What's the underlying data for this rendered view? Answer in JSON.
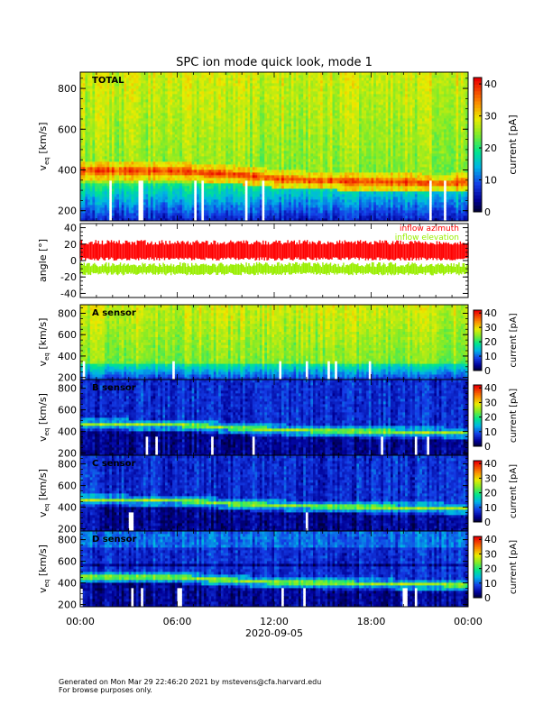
{
  "title": "SPC ion mode quick look, mode 1",
  "xaxis": {
    "label": "2020-09-05",
    "ticks": [
      "00:00",
      "06:00",
      "12:00",
      "18:00",
      "00:00"
    ],
    "range_hours": [
      0,
      24
    ]
  },
  "colorbar_label": "current [pA]",
  "footer": {
    "line1": "Generated on Mon Mar 29 22:46:20 2021 by mstevens@cfa.harvard.edu",
    "line2": "For browse purposes only."
  },
  "colors": {
    "inflow_azimuth": "#ff0000",
    "inflow_elevation": "#99ee00"
  },
  "chart_data": [
    {
      "type": "heatmap",
      "panel": "TOTAL",
      "ylabel": "v_eq [km/s]",
      "ylim": [
        150,
        880
      ],
      "yticks": [
        200,
        400,
        600,
        800
      ],
      "zlim": [
        0,
        42
      ],
      "zticks": [
        0,
        10,
        20,
        30,
        40
      ],
      "background": "green-yellow",
      "beam_core_velocity_kms": [
        [
          0,
          400
        ],
        [
          6,
          395
        ],
        [
          10,
          375
        ],
        [
          12,
          360
        ],
        [
          14,
          350
        ],
        [
          18,
          345
        ],
        [
          22,
          335
        ],
        [
          24,
          340
        ]
      ]
    },
    {
      "type": "line",
      "panel": "angle",
      "ylabel": "angle [°]",
      "ylim": [
        -45,
        45
      ],
      "yticks": [
        -40,
        -20,
        0,
        20,
        40
      ],
      "series": [
        {
          "name": "inflow azimuth",
          "color": "#ff0000",
          "range_deg": [
            0,
            25
          ]
        },
        {
          "name": "inflow elevation",
          "color": "#99ee00",
          "range_deg": [
            -18,
            -2
          ]
        }
      ]
    },
    {
      "type": "heatmap",
      "panel": "A sensor",
      "ylabel": "v_eq [km/s]",
      "ylim": [
        180,
        880
      ],
      "yticks": [
        200,
        400,
        600,
        800
      ],
      "zlim": [
        0,
        42
      ],
      "zticks": [
        0,
        10,
        20,
        30,
        40
      ],
      "background": "green"
    },
    {
      "type": "heatmap",
      "panel": "B sensor",
      "ylabel": "v_eq [km/s]",
      "ylim": [
        180,
        880
      ],
      "yticks": [
        200,
        400,
        600,
        800
      ],
      "zlim": [
        0,
        42
      ],
      "zticks": [
        0,
        10,
        20,
        30,
        40
      ],
      "background": "blue",
      "beam_core_velocity_kms": [
        [
          0,
          470
        ],
        [
          6,
          465
        ],
        [
          10,
          430
        ],
        [
          12,
          420
        ],
        [
          18,
          400
        ],
        [
          24,
          390
        ]
      ]
    },
    {
      "type": "heatmap",
      "panel": "C sensor",
      "ylabel": "v_eq [km/s]",
      "ylim": [
        180,
        880
      ],
      "yticks": [
        200,
        400,
        600,
        800
      ],
      "zlim": [
        0,
        42
      ],
      "zticks": [
        0,
        10,
        20,
        30,
        40
      ],
      "background": "blue",
      "beam_core_velocity_kms": [
        [
          0,
          470
        ],
        [
          6,
          465
        ],
        [
          10,
          430
        ],
        [
          12,
          420
        ],
        [
          18,
          400
        ],
        [
          24,
          390
        ]
      ]
    },
    {
      "type": "heatmap",
      "panel": "D sensor",
      "ylabel": "v_eq [km/s]",
      "ylim": [
        180,
        880
      ],
      "yticks": [
        200,
        400,
        600,
        800
      ],
      "zlim": [
        0,
        42
      ],
      "zticks": [
        0,
        10,
        20,
        30,
        40
      ],
      "background": "blue",
      "beam_core_velocity_kms": [
        [
          0,
          460
        ],
        [
          6,
          455
        ],
        [
          10,
          420
        ],
        [
          12,
          410
        ],
        [
          18,
          395
        ],
        [
          24,
          385
        ]
      ]
    }
  ]
}
